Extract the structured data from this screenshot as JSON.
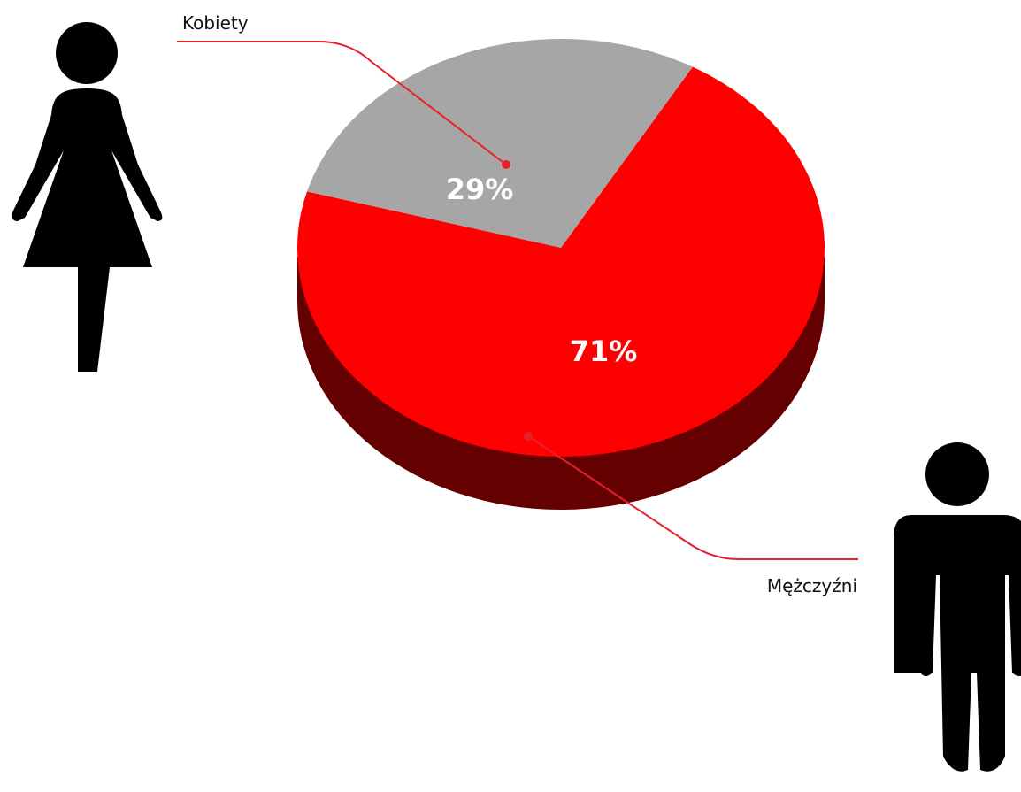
{
  "chart_data": {
    "type": "pie",
    "style": "3d",
    "title": "",
    "slices": [
      {
        "label": "Kobiety",
        "value": 29,
        "display": "29%",
        "color": "#a6a6a6",
        "icon": "woman-icon"
      },
      {
        "label": "Mężczyźni",
        "value": 71,
        "display": "71%",
        "color": "#fe0000",
        "icon": "man-icon"
      }
    ],
    "depth_color": "#650000",
    "leader_line_color": "#e8202c",
    "legend": "callouts with leader lines"
  }
}
